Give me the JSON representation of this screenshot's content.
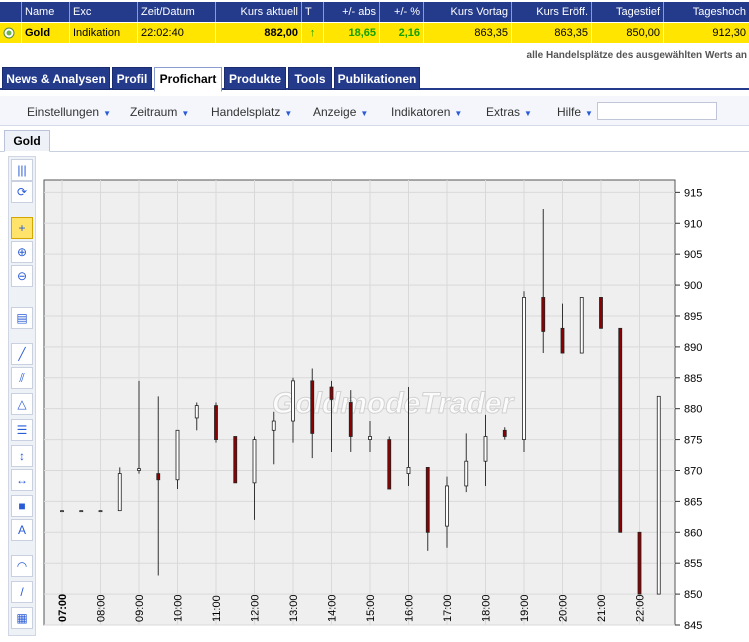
{
  "quote": {
    "headers": [
      "Name",
      "Exc",
      "Zeit/Datum",
      "Kurs aktuell",
      "T",
      "+/- abs",
      "+/- %",
      "Kurs Vortag",
      "Kurs Eröff.",
      "Tagestief",
      "Tageshoch"
    ],
    "row": {
      "name": "Gold",
      "exc": "Indikation",
      "time": "22:02:40",
      "kurs_aktuell": "882,00",
      "trend": "↑",
      "abs": "18,65",
      "pct": "2,16",
      "vortag": "863,35",
      "eroeff": "863,35",
      "tief": "850,00",
      "hoch": "912,30"
    }
  },
  "subnote": "alle Handelsplätze des ausgewählten Werts an",
  "tabs": [
    {
      "label": "News & Analysen",
      "active": false
    },
    {
      "label": "Profil",
      "active": false
    },
    {
      "label": "Profichart",
      "active": true
    },
    {
      "label": "Produkte",
      "active": false
    },
    {
      "label": "Tools",
      "active": false
    },
    {
      "label": "Publikationen",
      "active": false
    }
  ],
  "menu": [
    "Einstellungen",
    "Zeitraum",
    "Handelsplatz",
    "Anzeige",
    "Indikatoren",
    "Extras",
    "Hilfe"
  ],
  "subtab": "Gold",
  "watermark": "GoldmodeTrader",
  "tools": [
    {
      "icon": "bars-icon",
      "glyph": "|||"
    },
    {
      "icon": "refresh-icon",
      "glyph": "⟳"
    },
    {
      "icon": "crosshair-icon",
      "glyph": "+"
    },
    {
      "icon": "zoom-in-icon",
      "glyph": "⊕"
    },
    {
      "icon": "zoom-out-icon",
      "glyph": "⊖"
    },
    {
      "icon": "print-icon",
      "glyph": "▤"
    },
    {
      "icon": "line-icon",
      "glyph": "╱"
    },
    {
      "icon": "channel-icon",
      "glyph": "⫽"
    },
    {
      "icon": "triangle-icon",
      "glyph": "△"
    },
    {
      "icon": "fibonacci-icon",
      "glyph": "☰"
    },
    {
      "icon": "vertical-line-icon",
      "glyph": "↕"
    },
    {
      "icon": "horizontal-line-icon",
      "glyph": "↔"
    },
    {
      "icon": "rectangle-icon",
      "glyph": "■"
    },
    {
      "icon": "text-icon",
      "glyph": "A"
    },
    {
      "icon": "arc-icon",
      "glyph": "◠"
    },
    {
      "icon": "pen-icon",
      "glyph": "/"
    },
    {
      "icon": "palette-icon",
      "glyph": "▦"
    }
  ],
  "chart_data": {
    "type": "candlestick",
    "ylim": [
      845,
      917
    ],
    "y_ticks": [
      915,
      910,
      905,
      900,
      895,
      890,
      885,
      880,
      875,
      870,
      865,
      860,
      855,
      850,
      845
    ],
    "x_labels": [
      "07:00",
      "08:00",
      "09:00",
      "10:00",
      "11:00",
      "12:00",
      "13:00",
      "14:00",
      "15:00",
      "16:00",
      "17:00",
      "18:00",
      "19:00",
      "20:00",
      "21:00",
      "22:00"
    ],
    "grid": true,
    "up_color": "#ffffff",
    "down_color": "#8b0000",
    "candles": [
      {
        "t": 0.0,
        "o": 863.5,
        "h": 863.5,
        "l": 863.5,
        "c": 863.5
      },
      {
        "t": 0.5,
        "o": 863.5,
        "h": 863.5,
        "l": 863.5,
        "c": 863.5
      },
      {
        "t": 1.0,
        "o": 863.5,
        "h": 863.5,
        "l": 863.5,
        "c": 863.5
      },
      {
        "t": 1.5,
        "o": 863.5,
        "h": 870.5,
        "l": 863.5,
        "c": 869.5
      },
      {
        "t": 2.0,
        "o": 870.0,
        "h": 884.5,
        "l": 869.5,
        "c": 870.3
      },
      {
        "t": 2.5,
        "o": 869.5,
        "h": 882.0,
        "l": 853.0,
        "c": 868.5
      },
      {
        "t": 3.0,
        "o": 868.5,
        "h": 876.5,
        "l": 867.0,
        "c": 876.5
      },
      {
        "t": 3.5,
        "o": 878.5,
        "h": 881.0,
        "l": 876.5,
        "c": 880.5
      },
      {
        "t": 4.0,
        "o": 880.5,
        "h": 881.0,
        "l": 874.5,
        "c": 875.0
      },
      {
        "t": 4.5,
        "o": 875.5,
        "h": 875.5,
        "l": 868.0,
        "c": 868.0
      },
      {
        "t": 5.0,
        "o": 868.0,
        "h": 875.5,
        "l": 862.0,
        "c": 875.0
      },
      {
        "t": 5.5,
        "o": 876.5,
        "h": 879.5,
        "l": 871.0,
        "c": 878.0
      },
      {
        "t": 6.0,
        "o": 878.0,
        "h": 885.0,
        "l": 874.5,
        "c": 884.5
      },
      {
        "t": 6.5,
        "o": 884.5,
        "h": 886.5,
        "l": 872.0,
        "c": 876.0
      },
      {
        "t": 7.0,
        "o": 883.5,
        "h": 884.5,
        "l": 873.0,
        "c": 881.5
      },
      {
        "t": 7.5,
        "o": 881.0,
        "h": 883.0,
        "l": 873.0,
        "c": 875.5
      },
      {
        "t": 8.0,
        "o": 875.0,
        "h": 878.0,
        "l": 873.0,
        "c": 875.5
      },
      {
        "t": 8.5,
        "o": 875.0,
        "h": 875.5,
        "l": 867.0,
        "c": 867.0
      },
      {
        "t": 9.0,
        "o": 869.5,
        "h": 883.5,
        "l": 867.5,
        "c": 870.5
      },
      {
        "t": 9.5,
        "o": 870.5,
        "h": 870.5,
        "l": 857.0,
        "c": 860.0
      },
      {
        "t": 10.0,
        "o": 861.0,
        "h": 869.0,
        "l": 857.5,
        "c": 867.5
      },
      {
        "t": 10.5,
        "o": 867.5,
        "h": 876.0,
        "l": 866.5,
        "c": 871.5
      },
      {
        "t": 11.0,
        "o": 871.5,
        "h": 879.0,
        "l": 867.5,
        "c": 875.5
      },
      {
        "t": 11.5,
        "o": 876.5,
        "h": 877.0,
        "l": 875.0,
        "c": 875.5
      },
      {
        "t": 12.0,
        "o": 875.0,
        "h": 899.0,
        "l": 873.0,
        "c": 898.0
      },
      {
        "t": 12.5,
        "o": 898.0,
        "h": 912.3,
        "l": 889.0,
        "c": 892.5
      },
      {
        "t": 13.0,
        "o": 893.0,
        "h": 897.0,
        "l": 889.0,
        "c": 889.0
      },
      {
        "t": 13.5,
        "o": 889.0,
        "h": 898.0,
        "l": 889.0,
        "c": 898.0
      },
      {
        "t": 14.0,
        "o": 898.0,
        "h": 898.0,
        "l": 893.0,
        "c": 893.0
      },
      {
        "t": 14.5,
        "o": 893.0,
        "h": 893.0,
        "l": 860.0,
        "c": 860.0
      },
      {
        "t": 15.0,
        "o": 860.0,
        "h": 860.0,
        "l": 850.0,
        "c": 850.0
      },
      {
        "t": 15.5,
        "o": 850.0,
        "h": 882.0,
        "l": 850.0,
        "c": 882.0
      }
    ]
  }
}
